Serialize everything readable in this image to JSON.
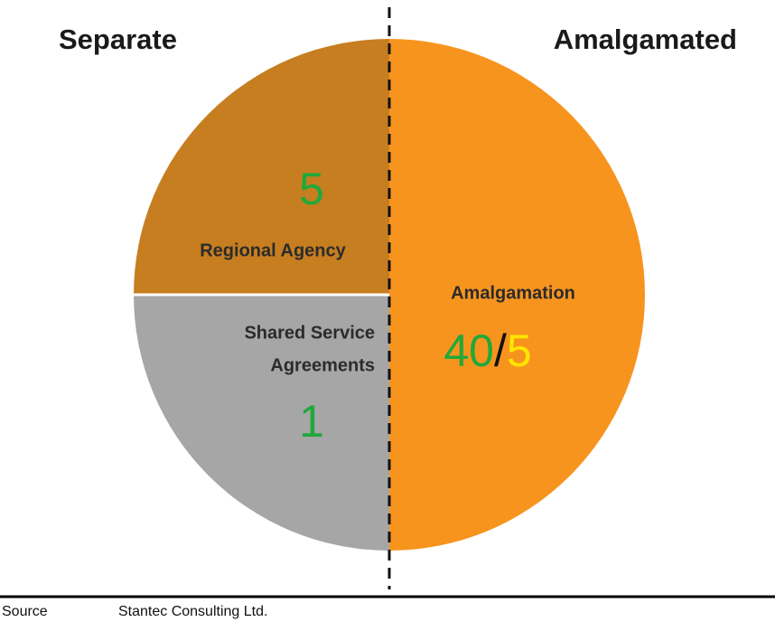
{
  "headers": {
    "left": "Separate",
    "right": "Amalgamated"
  },
  "segments": [
    {
      "label": "Regional Agency",
      "value": 5
    },
    {
      "label_lines": [
        "Shared Service",
        "Agreements"
      ],
      "value": 1
    },
    {
      "label": "Amalgamation",
      "value_parts": [
        40,
        "/",
        5
      ]
    }
  ],
  "source": {
    "label": "Source",
    "text": "Stantec Consulting Ltd."
  }
}
